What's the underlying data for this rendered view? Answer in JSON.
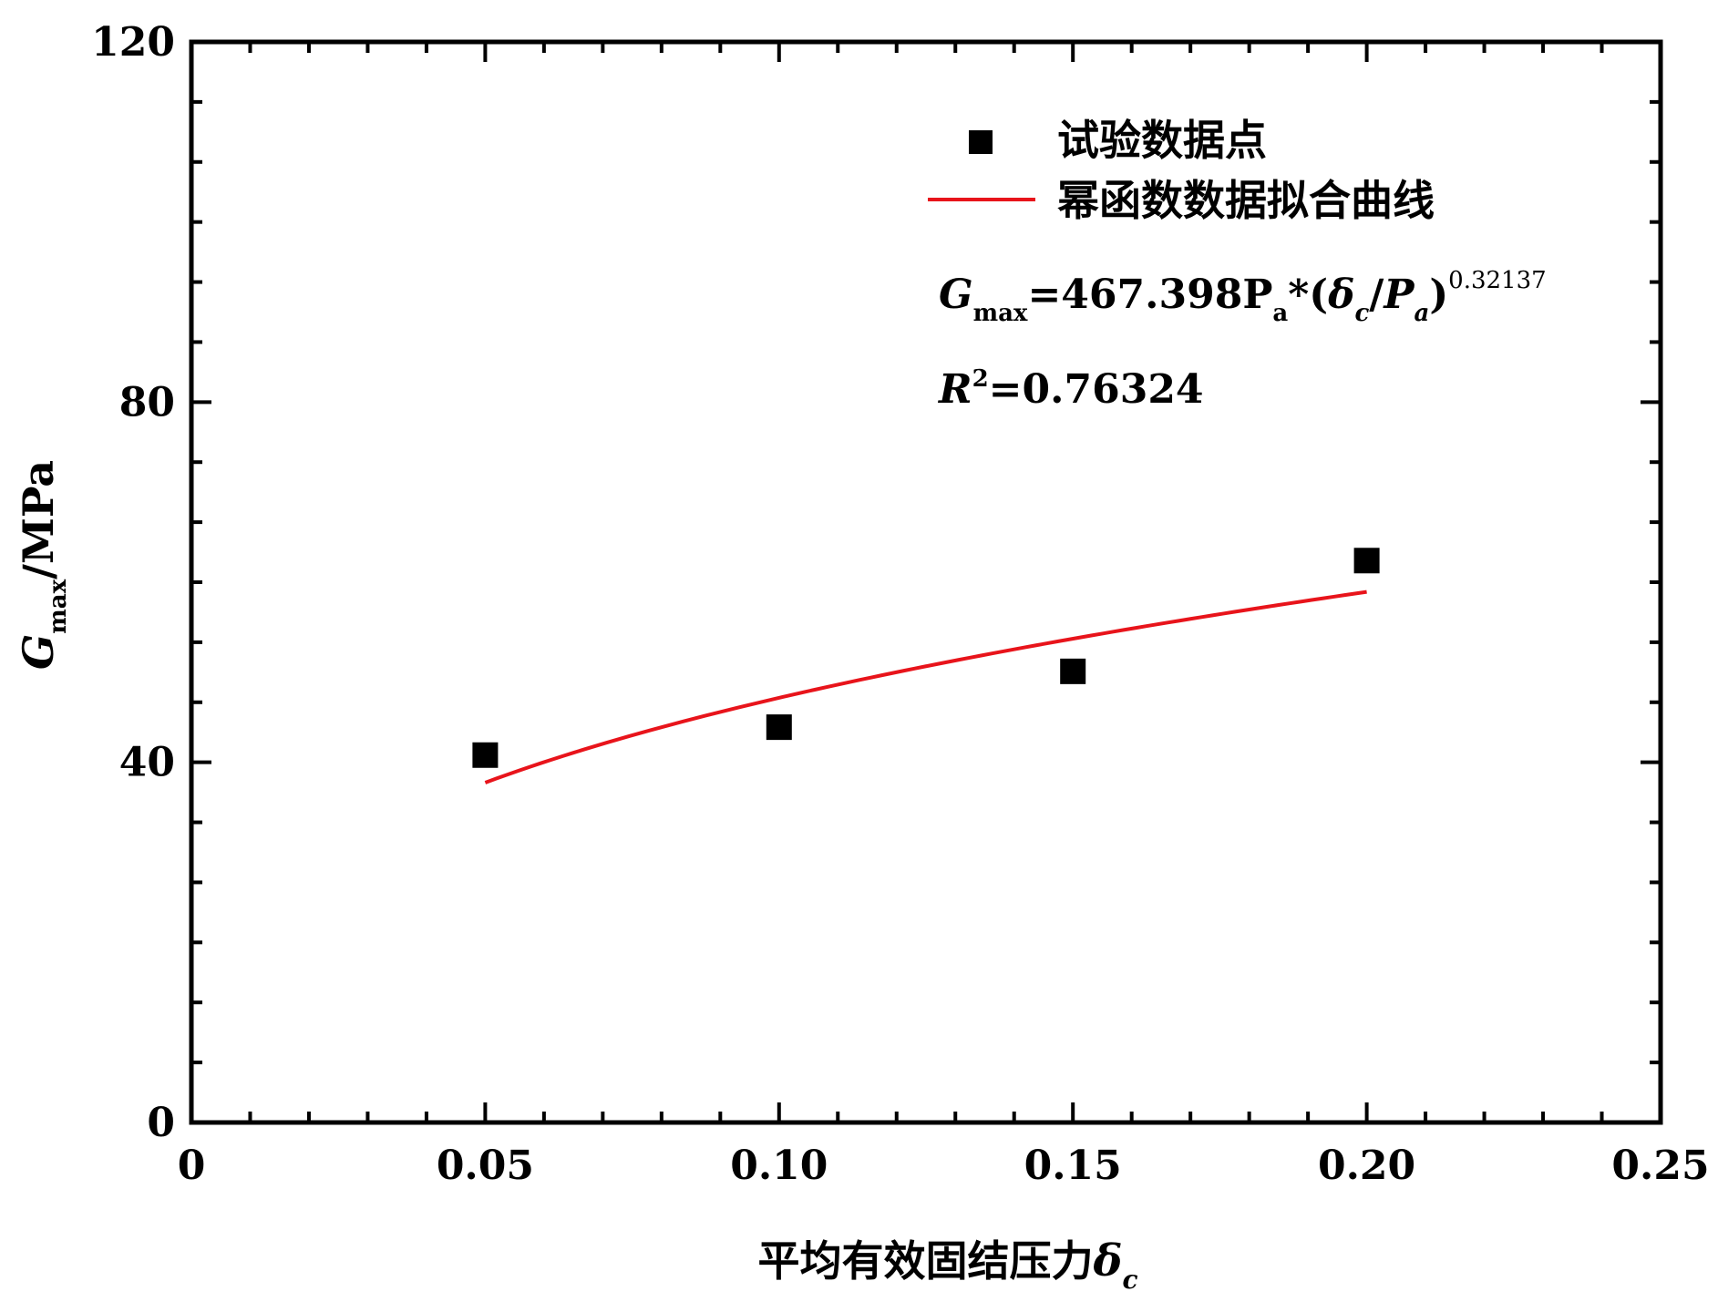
{
  "chart_data": {
    "type": "scatter",
    "xlabel": {
      "text": "平均有效固结压力",
      "symbol": "δ",
      "symbol_sub": "c"
    },
    "ylabel": {
      "symbol": "G",
      "symbol_sub": "max",
      "unit": "/MPa"
    },
    "xlim": [
      0,
      0.25
    ],
    "ylim": [
      0,
      120
    ],
    "x_major_ticks": [
      0,
      0.05,
      0.1,
      0.15,
      0.2,
      0.25
    ],
    "x_tick_labels": [
      "0",
      "0.05",
      "0.10",
      "0.15",
      "0.20",
      "0.25"
    ],
    "x_minor_step": 0.01,
    "y_major_ticks": [
      0,
      40,
      80,
      120
    ],
    "y_tick_labels": [
      "0",
      "40",
      "80",
      "120"
    ],
    "y_minor_step": 6.6667,
    "series": [
      {
        "name": "试验数据点",
        "kind": "scatter",
        "marker": "square",
        "color": "#000000",
        "x": [
          0.05,
          0.1,
          0.15,
          0.2
        ],
        "y": [
          40.8,
          43.9,
          50.1,
          62.4
        ]
      },
      {
        "name": "幂函数数据拟合曲线",
        "kind": "line",
        "color": "#e8141b",
        "model": {
          "a": 467.398,
          "b": 0.32137,
          "Pa": 0.101325,
          "x_range": [
            0.05,
            0.2
          ]
        }
      }
    ],
    "legend_position": "top-right",
    "annotations": {
      "equation": {
        "lhs": "G",
        "lhs_sub": "max",
        "eq_part": "=467.398P",
        "pa_sub": "a",
        "open": "*(",
        "delta": "δ",
        "delta_sub": "c",
        "slash": "/",
        "P": "P",
        "P_sub": "a",
        "close": ")",
        "exponent": "0.32137"
      },
      "r2": {
        "R": "R",
        "sup": "2",
        "value": "=0.76324"
      }
    },
    "grid": false
  }
}
